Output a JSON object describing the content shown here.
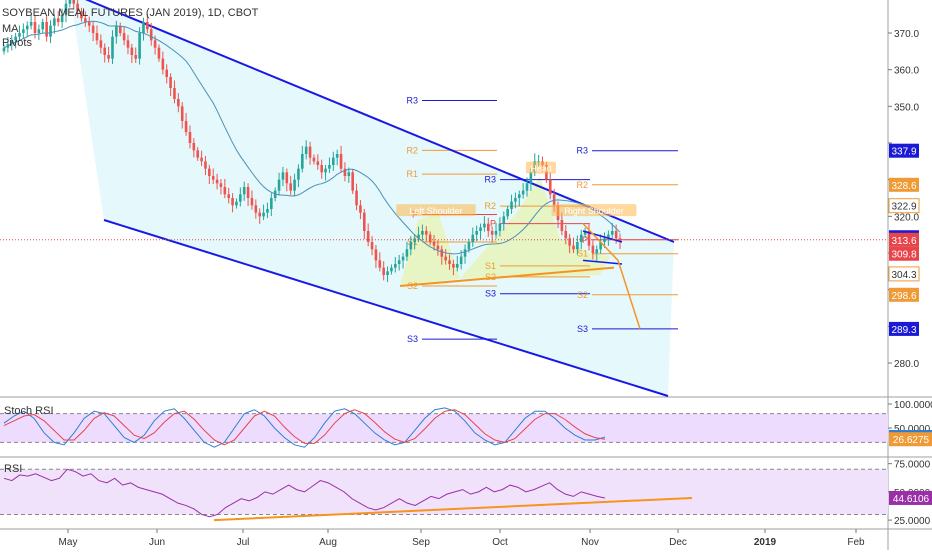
{
  "header": {
    "title": "SOYBEAN MEAL FUTURES (JAN 2019), 1D, CBOT",
    "indicators": [
      "MA",
      "Pivots"
    ]
  },
  "colors": {
    "up": "#26a69a",
    "down": "#ef5350",
    "channel": "#1919e6",
    "channel_fill": "#e0f7fa",
    "ma": "#4a90b8",
    "pattern_fill": "#e6f5b8",
    "pivot_red": "#e8454b",
    "pivot_orange": "#f09a35",
    "pivot_blue": "#1a1ad6",
    "stoch_k": "#2e7fd1",
    "stoch_d": "#e8454b",
    "stoch_band": "#eedcff",
    "rsi": "#9a2fa8",
    "rsi_band": "#f0e2fb",
    "trend": "#f7931e",
    "pointer": "#ffb84d"
  },
  "chart_data": [
    {
      "type": "candlestick",
      "panel": "price",
      "ylim": [
        271,
        379
      ],
      "y_ticks": [
        280.0,
        290.0,
        300.0,
        310.0,
        320.0,
        330.0,
        340.0,
        350.0,
        360.0,
        370.0
      ],
      "y_tick_labels": [
        "280.0",
        "",
        "",
        "",
        "320.0",
        "",
        "",
        "350.0",
        "360.0",
        "370.0"
      ],
      "x_labels": [
        "May",
        "Jun",
        "Jul",
        "Aug",
        "Sep",
        "Oct",
        "Nov",
        "Dec",
        "2019",
        "Feb"
      ],
      "price_badges": [
        {
          "value": 337.9,
          "label": "337.9",
          "color": "#1a1ad6",
          "style": "solid"
        },
        {
          "value": 328.6,
          "label": "328.6",
          "color": "#f09a35",
          "style": "solid"
        },
        {
          "value": 322.9,
          "label": "322.9",
          "color": "#f09a35",
          "style": "outline"
        },
        {
          "value": 314.3,
          "label": "314.3",
          "color": "#1a1ad6",
          "style": "solid"
        },
        {
          "value": 313.6,
          "label": "313.6",
          "color": "#e8454b",
          "style": "solid"
        },
        {
          "value": 309.8,
          "label": "309.8",
          "color": "#e8454b",
          "style": "solid"
        },
        {
          "value": 304.3,
          "label": "304.3",
          "color": "#f09a35",
          "style": "outline"
        },
        {
          "value": 298.6,
          "label": "298.6",
          "color": "#f09a35",
          "style": "solid"
        },
        {
          "value": 289.3,
          "label": "289.3",
          "color": "#1a1ad6",
          "style": "solid"
        }
      ],
      "closes": [
        366,
        367,
        368,
        369,
        370,
        371,
        372,
        373,
        370,
        371,
        373,
        369,
        372,
        374,
        373,
        375,
        378,
        380,
        378,
        376,
        374,
        373,
        372,
        370,
        368,
        366,
        364,
        363,
        369,
        372,
        370,
        368,
        366,
        364,
        363,
        370,
        373,
        371,
        368,
        366,
        363,
        360,
        358,
        355,
        352,
        350,
        346,
        343,
        340,
        338,
        336,
        335,
        333,
        331,
        330,
        329,
        328,
        326,
        325,
        323,
        324,
        326,
        328,
        325,
        323,
        321,
        320,
        321,
        322,
        325,
        327,
        330,
        332,
        329,
        327,
        330,
        333,
        337,
        339,
        336,
        335,
        334,
        332,
        333,
        334,
        336,
        337,
        333,
        331,
        332,
        327,
        323,
        321,
        316,
        313,
        311,
        308,
        306,
        304,
        305,
        306,
        307,
        308,
        309,
        311,
        313,
        314,
        315,
        316,
        315,
        313,
        312,
        311,
        309,
        308,
        307,
        306,
        307,
        309,
        311,
        313,
        315,
        316,
        317,
        318,
        316,
        315,
        316,
        318,
        320,
        322,
        324,
        325,
        326,
        327,
        329,
        332,
        335,
        335,
        334,
        330,
        326,
        323,
        319,
        316,
        314,
        312,
        311,
        313,
        315,
        316,
        312,
        310,
        311,
        313,
        314,
        315,
        316,
        314,
        313
      ],
      "volatility": 2.2,
      "moving_average": "20-period",
      "pivots": [
        {
          "label": "R3",
          "value": 351.6,
          "color": "#1a1ad6"
        },
        {
          "label": "R2",
          "value": 338.0,
          "color": "#f09a35"
        },
        {
          "label": "R1",
          "value": 331.5,
          "color": "#f09a35"
        },
        {
          "label": "P",
          "value": 320.5,
          "color": "#e8454b"
        },
        {
          "label": "S1",
          "value": 313.0,
          "color": "#f09a35"
        },
        {
          "label": "S2",
          "value": 301.0,
          "color": "#f09a35"
        },
        {
          "label": "S3",
          "value": 286.5,
          "color": "#1a1ad6"
        }
      ],
      "pivots_oct": [
        {
          "label": "R3",
          "value": 330.0,
          "color": "#1a1ad6"
        },
        {
          "label": "R2",
          "value": 322.8,
          "color": "#f09a35"
        },
        {
          "label": "P",
          "value": 318.0,
          "color": "#e8454b"
        },
        {
          "label": "S1",
          "value": 306.5,
          "color": "#f09a35"
        },
        {
          "label": "S2",
          "value": 303.5,
          "color": "#f09a35"
        },
        {
          "label": "S3",
          "value": 298.9,
          "color": "#1a1ad6"
        }
      ],
      "pivots_nov": [
        {
          "label": "R3",
          "value": 337.9,
          "color": "#1a1ad6"
        },
        {
          "label": "R2",
          "value": 328.6,
          "color": "#f09a35"
        },
        {
          "label": "P",
          "value": 313.6,
          "color": "#e8454b"
        },
        {
          "label": "S1",
          "value": 309.8,
          "color": "#f09a35"
        },
        {
          "label": "S2",
          "value": 298.6,
          "color": "#f09a35"
        },
        {
          "label": "S3",
          "value": 289.3,
          "color": "#1a1ad6"
        }
      ],
      "pattern_labels": [
        "Left Shoulder",
        "Head",
        "Right Shoulder"
      ]
    },
    {
      "type": "line",
      "panel": "stoch",
      "title": "Stoch RSI",
      "ylim": [
        0,
        100
      ],
      "y_ticks": [
        100,
        50
      ],
      "y_tick_labels": [
        "100.0000",
        "50.0000"
      ],
      "bands": [
        80,
        20
      ],
      "series": [
        {
          "name": "K",
          "values": [
            60,
            75,
            85,
            70,
            40,
            20,
            15,
            40,
            70,
            85,
            80,
            55,
            30,
            20,
            35,
            65,
            85,
            90,
            70,
            45,
            20,
            10,
            20,
            50,
            80,
            88,
            75,
            50,
            30,
            15,
            10,
            30,
            60,
            85,
            90,
            80,
            60,
            40,
            25,
            15,
            20,
            45,
            70,
            88,
            92,
            85,
            65,
            40,
            25,
            15,
            20,
            45,
            70,
            85,
            85,
            70,
            50,
            35,
            25,
            25,
            31
          ]
        },
        {
          "name": "D",
          "values": [
            55,
            65,
            75,
            78,
            65,
            45,
            25,
            25,
            45,
            70,
            82,
            75,
            55,
            35,
            28,
            40,
            62,
            80,
            85,
            68,
            45,
            25,
            15,
            25,
            50,
            75,
            85,
            75,
            52,
            32,
            18,
            18,
            35,
            60,
            80,
            88,
            80,
            62,
            42,
            27,
            20,
            28,
            48,
            70,
            85,
            88,
            78,
            58,
            38,
            25,
            20,
            28,
            48,
            68,
            80,
            80,
            68,
            52,
            38,
            30,
            26.6
          ]
        }
      ],
      "value_badges": [
        {
          "value": 31.1716,
          "label": "31.1716",
          "color": "#2e7fd1"
        },
        {
          "value": 26.6275,
          "label": "26.6275",
          "color": "#f09a35"
        }
      ]
    },
    {
      "type": "line",
      "panel": "rsi",
      "title": "RSI",
      "ylim": [
        18,
        80
      ],
      "y_ticks": [
        75,
        50,
        25
      ],
      "y_tick_labels": [
        "75.0000",
        "50.0000",
        "25.0000"
      ],
      "bands": [
        70,
        30
      ],
      "series": [
        {
          "name": "RSI",
          "values": [
            62,
            60,
            65,
            64,
            66,
            63,
            60,
            62,
            70,
            68,
            64,
            66,
            60,
            58,
            62,
            56,
            58,
            54,
            52,
            50,
            48,
            44,
            40,
            38,
            35,
            30,
            28,
            30,
            36,
            40,
            44,
            42,
            45,
            50,
            48,
            52,
            56,
            52,
            50,
            55,
            60,
            58,
            54,
            50,
            44,
            40,
            36,
            34,
            36,
            40,
            44,
            40,
            38,
            42,
            46,
            44,
            48,
            50,
            52,
            48,
            50,
            54,
            50,
            52,
            56,
            54,
            50,
            52,
            55,
            58,
            52,
            48,
            46,
            50,
            48,
            46,
            44.6
          ]
        }
      ],
      "trendline": {
        "start": 25.0,
        "end": 44.6
      },
      "value_badges": [
        {
          "value": 44.6106,
          "label": "44.6106",
          "color": "#9a2fa8"
        }
      ]
    }
  ]
}
